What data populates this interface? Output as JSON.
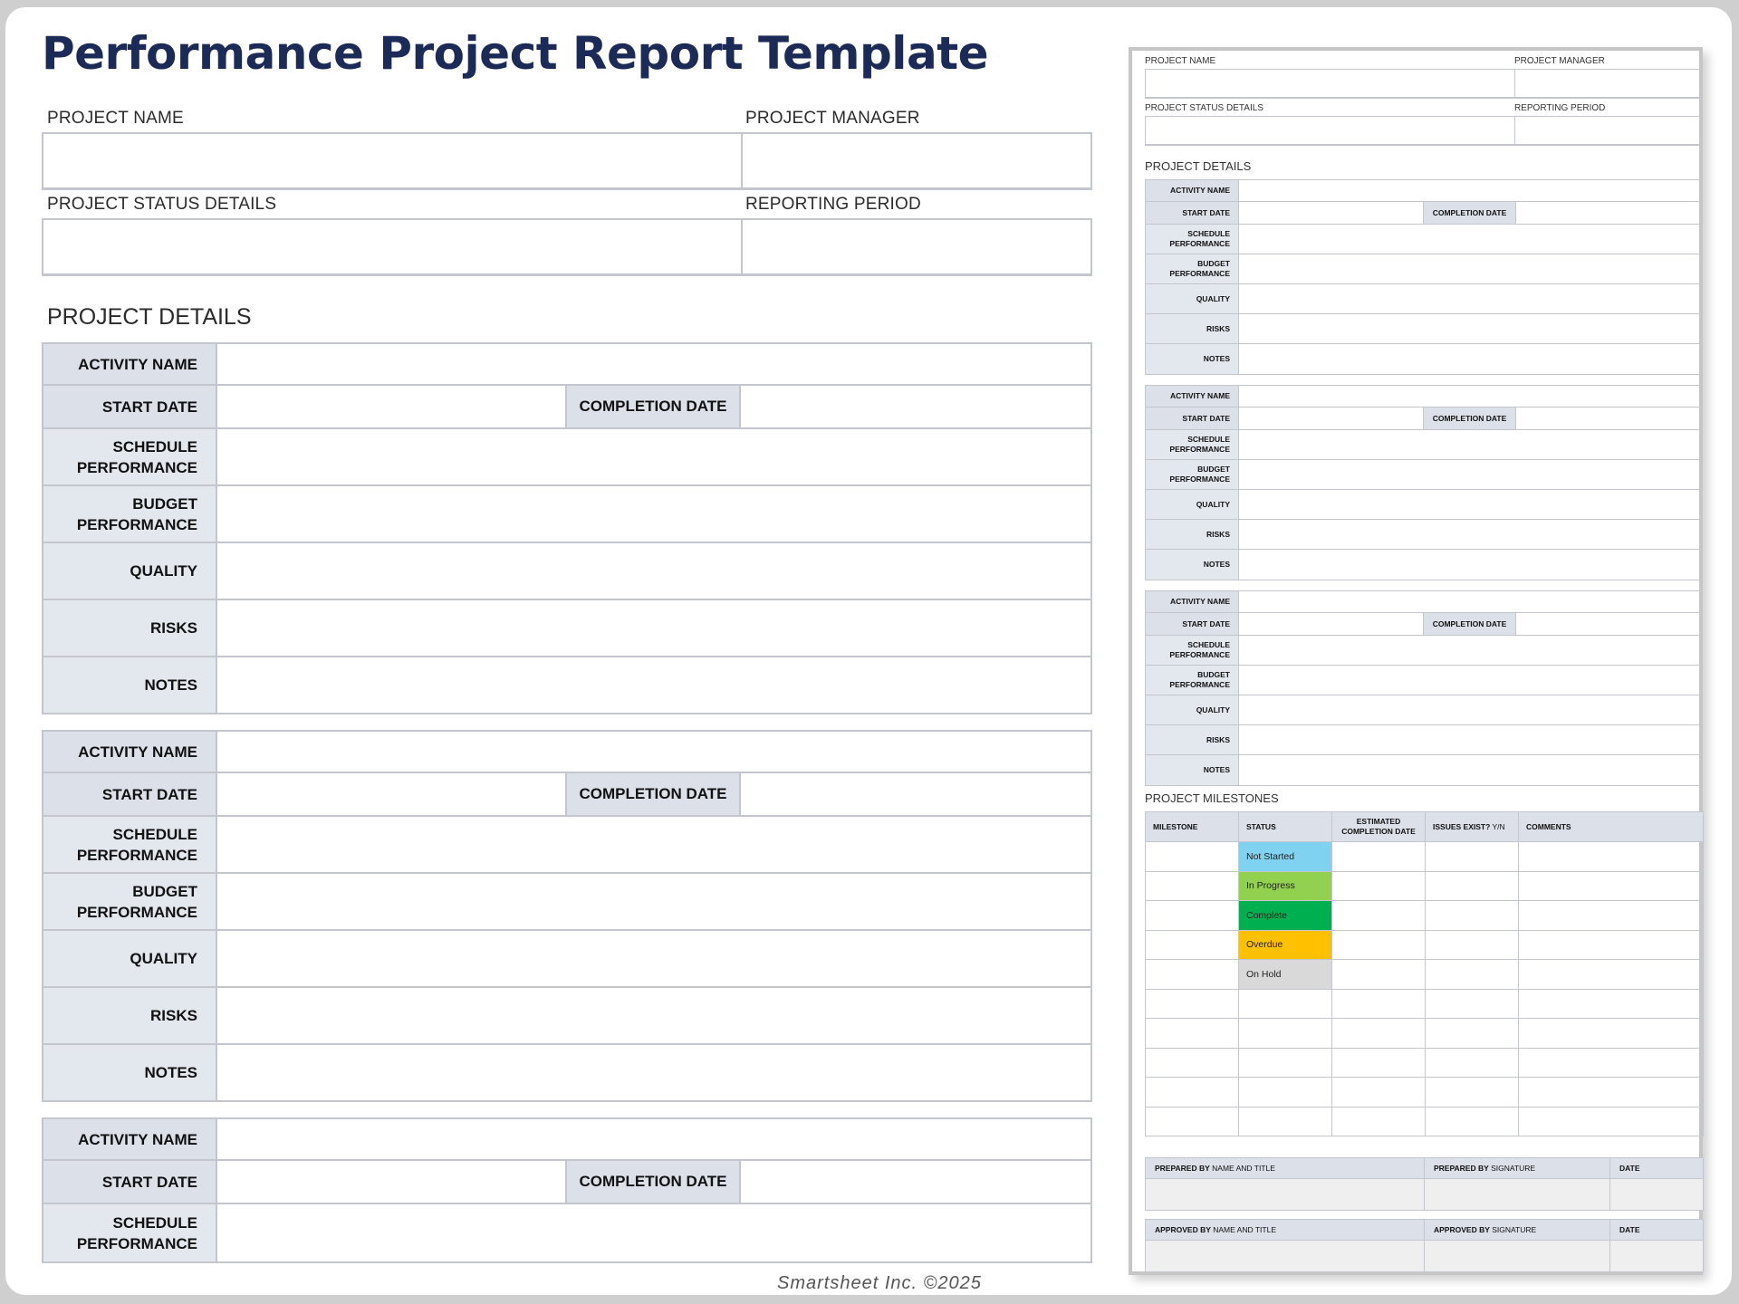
{
  "title": "Performance Project Report Template",
  "header_fields": {
    "project_name": "PROJECT NAME",
    "project_manager": "PROJECT MANAGER",
    "project_status_details": "PROJECT STATUS DETAILS",
    "reporting_period": "REPORTING PERIOD"
  },
  "project_details_title": "PROJECT DETAILS",
  "activity_labels": {
    "activity_name": "ACTIVITY NAME",
    "start_date": "START DATE",
    "completion_date": "COMPLETION DATE",
    "schedule_performance": "SCHEDULE\nPERFORMANCE",
    "budget_performance": "BUDGET\nPERFORMANCE",
    "quality": "QUALITY",
    "risks": "RISKS",
    "notes": "NOTES"
  },
  "milestones": {
    "title": "PROJECT MILESTONES",
    "columns": {
      "milestone": "MILESTONE",
      "status": "STATUS",
      "estimated_completion_date": "ESTIMATED\nCOMPLETION DATE",
      "issues_exist_bold": "ISSUES EXIST?",
      "issues_exist_normal": " Y/N",
      "comments": "COMMENTS"
    },
    "statuses": [
      {
        "label": "Not Started",
        "color": "#7fd2f0"
      },
      {
        "label": "In Progress",
        "color": "#92d050"
      },
      {
        "label": "Complete",
        "color": "#00b050"
      },
      {
        "label": "Overdue",
        "color": "#ffc000"
      },
      {
        "label": "On Hold",
        "color": "#d9d9d9"
      }
    ]
  },
  "signatures": {
    "prepared_by_bold": "PREPARED BY",
    "approved_by_bold": "APPROVED BY",
    "name_and_title": " NAME AND TITLE",
    "signature": " SIGNATURE",
    "date": "DATE"
  },
  "footer": "Smartsheet Inc. ©2025"
}
